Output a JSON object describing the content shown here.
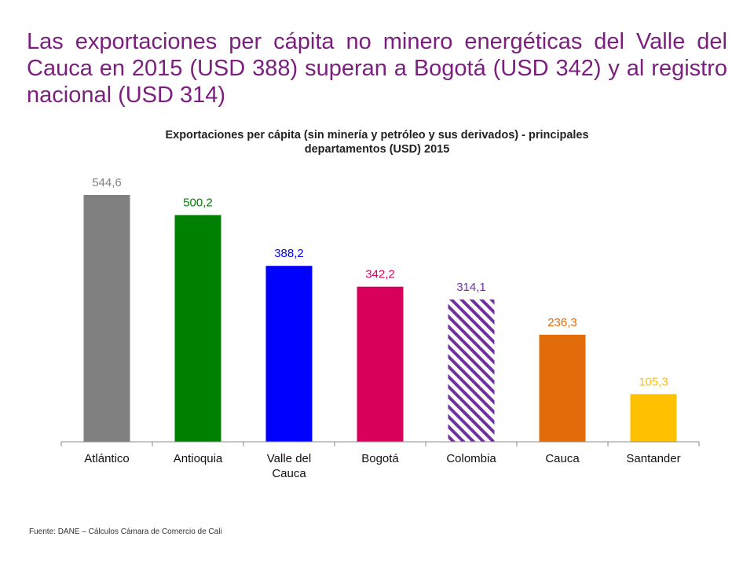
{
  "headline": "Las exportaciones per cápita no minero energéticas del Valle del Cauca en 2015 (USD 388) superan a Bogotá (USD 342) y al registro nacional (USD 314)",
  "source": "Fuente: DANE – Cálculos Cámara de Comercio de Cali",
  "chart_data": {
    "type": "bar",
    "title_line1": "Exportaciones per cápita (sin minería y petróleo y sus derivados) - principales",
    "title_line2": "departamentos (USD) 2015",
    "categories": [
      [
        "Atlántico"
      ],
      [
        "Antioquia"
      ],
      [
        "Valle del",
        "Cauca"
      ],
      [
        "Bogotá"
      ],
      [
        "Colombia"
      ],
      [
        "Cauca"
      ],
      [
        "Santander"
      ]
    ],
    "values": [
      544.6,
      500.2,
      388.2,
      342.2,
      314.1,
      236.3,
      105.3
    ],
    "value_labels": [
      "544,6",
      "500,2",
      "388,2",
      "342,2",
      "314,1",
      "236,3",
      "105,3"
    ],
    "colors": [
      "#808080",
      "#008000",
      "#0000ff",
      "#d9005b",
      "#7030a0",
      "#e36c0a",
      "#ffc000"
    ],
    "label_colors": [
      "#808080",
      "#008000",
      "#0000ff",
      "#d9005b",
      "#7030a0",
      "#e36c0a",
      "#ffc000"
    ],
    "hatched": [
      false,
      false,
      false,
      false,
      true,
      false,
      false
    ],
    "ylim": [
      0,
      544.6
    ],
    "grid": false,
    "xlabel": "",
    "ylabel": ""
  }
}
